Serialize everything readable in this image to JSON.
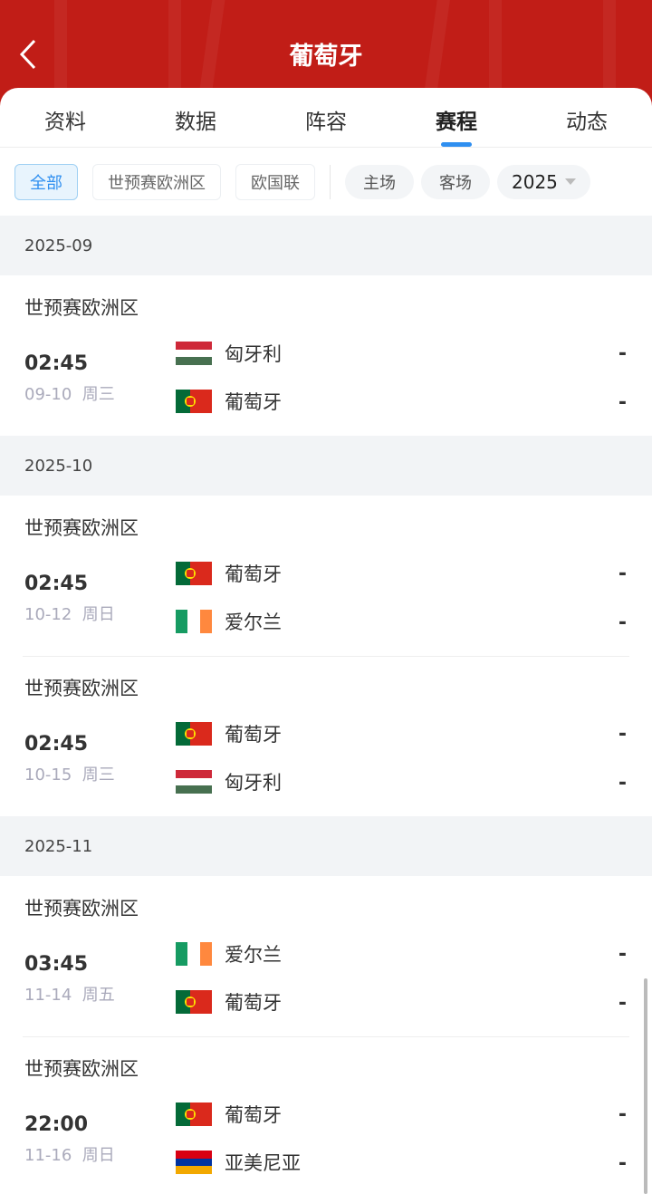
{
  "header": {
    "title": "葡萄牙"
  },
  "tabs": [
    {
      "label": "资料"
    },
    {
      "label": "数据"
    },
    {
      "label": "阵容"
    },
    {
      "label": "赛程",
      "active": true
    },
    {
      "label": "动态"
    }
  ],
  "filters": {
    "competitions": [
      "全部",
      "世预赛欧洲区",
      "欧国联"
    ],
    "venue": [
      "主场",
      "客场"
    ],
    "year": "2025",
    "active": "全部"
  },
  "accent": "#2f8ff0",
  "months": [
    {
      "label": "2025-09",
      "matches": [
        {
          "competition": "世预赛欧洲区",
          "time": "02:45",
          "date": "09-10",
          "weekday": "周三",
          "home": {
            "name": "匈牙利",
            "flag": "hungary"
          },
          "away": {
            "name": "葡萄牙",
            "flag": "portugal"
          },
          "home_score": "-",
          "away_score": "-"
        }
      ]
    },
    {
      "label": "2025-10",
      "matches": [
        {
          "competition": "世预赛欧洲区",
          "time": "02:45",
          "date": "10-12",
          "weekday": "周日",
          "home": {
            "name": "葡萄牙",
            "flag": "portugal"
          },
          "away": {
            "name": "爱尔兰",
            "flag": "ireland"
          },
          "home_score": "-",
          "away_score": "-"
        },
        {
          "competition": "世预赛欧洲区",
          "time": "02:45",
          "date": "10-15",
          "weekday": "周三",
          "home": {
            "name": "葡萄牙",
            "flag": "portugal"
          },
          "away": {
            "name": "匈牙利",
            "flag": "hungary"
          },
          "home_score": "-",
          "away_score": "-"
        }
      ]
    },
    {
      "label": "2025-11",
      "matches": [
        {
          "competition": "世预赛欧洲区",
          "time": "03:45",
          "date": "11-14",
          "weekday": "周五",
          "home": {
            "name": "爱尔兰",
            "flag": "ireland"
          },
          "away": {
            "name": "葡萄牙",
            "flag": "portugal"
          },
          "home_score": "-",
          "away_score": "-"
        },
        {
          "competition": "世预赛欧洲区",
          "time": "22:00",
          "date": "11-16",
          "weekday": "周日",
          "home": {
            "name": "葡萄牙",
            "flag": "portugal"
          },
          "away": {
            "name": "亚美尼亚",
            "flag": "armenia"
          },
          "home_score": "-",
          "away_score": "-"
        }
      ]
    }
  ]
}
